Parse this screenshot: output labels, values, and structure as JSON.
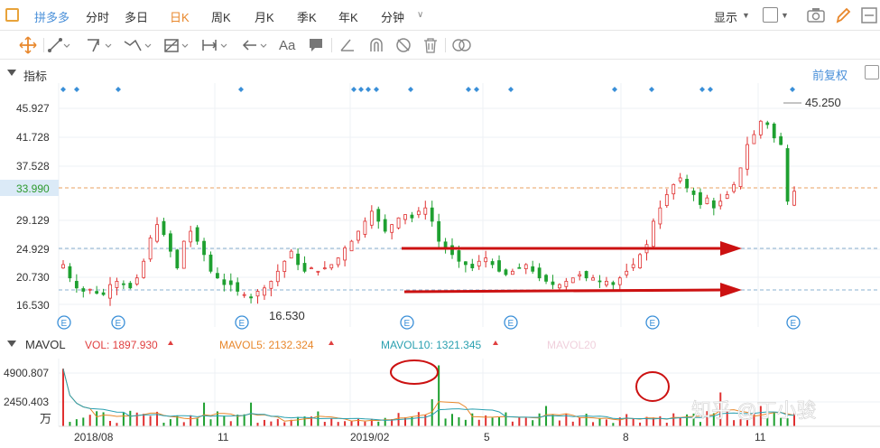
{
  "topbar": {
    "stock_name": "拼多多",
    "periods": [
      "分时",
      "多日",
      "日K",
      "周K",
      "月K",
      "季K",
      "年K",
      "分钟"
    ],
    "active_period": "日K",
    "display_label": "显示"
  },
  "indicator_panel": {
    "title": "指标",
    "adjust_label": "前复权"
  },
  "price_chart": {
    "y_ticks": [
      "45.927",
      "41.728",
      "37.528",
      "33.990",
      "29.129",
      "24.929",
      "20.730",
      "16.530"
    ],
    "current_price_label": "33.990",
    "high_annotation": "45.250",
    "low_annotation": "16.530",
    "event_marker": "E"
  },
  "volume_panel": {
    "title": "MAVOL",
    "legend": {
      "vol": "VOL: 1897.930",
      "mavol5": "MAVOL5: 2132.324",
      "mavol10": "MAVOL10: 1321.345",
      "mavol20": "MAVOL20"
    },
    "y_ticks": [
      "4900.807",
      "2450.403"
    ],
    "unit": "万"
  },
  "x_axis": {
    "labels": [
      "2018/08",
      "11",
      "2019/02",
      "5",
      "8",
      "11"
    ]
  },
  "watermark": "知乎 @丁小骏",
  "colors": {
    "up": "#e03030",
    "down": "#1ea030",
    "accent": "#e8872b",
    "link": "#4a90d9",
    "arrow": "#cc1111",
    "current_price": "#2e9b2e",
    "mavol5": "#e8872b",
    "mavol10": "#2aa0b0",
    "mavol20": "#e8a0c0"
  },
  "chart_data": {
    "type": "candlestick",
    "price_range": [
      16.53,
      45.927
    ],
    "series_close": [
      22.5,
      20.5,
      19.0,
      18.5,
      18.8,
      18.2,
      18.0,
      19.5,
      20.0,
      19.5,
      19.0,
      20.5,
      23.0,
      26.5,
      28.5,
      27.0,
      24.5,
      22.0,
      26.0,
      27.5,
      26.0,
      24.0,
      21.5,
      20.5,
      19.5,
      19.5,
      18.5,
      18.0,
      17.5,
      18.5,
      19.0,
      20.0,
      21.5,
      23.0,
      24.5,
      22.5,
      21.5,
      22.0,
      21.5,
      22.0,
      22.5,
      23.5,
      25.0,
      26.0,
      27.5,
      29.0,
      30.5,
      29.0,
      27.5,
      28.5,
      29.5,
      30.0,
      29.5,
      30.5,
      31.0,
      29.0,
      26.0,
      25.0,
      24.0,
      23.0,
      22.5,
      22.0,
      23.0,
      23.5,
      22.5,
      21.5,
      21.0,
      21.5,
      22.0,
      22.5,
      21.5,
      20.5,
      20.0,
      19.5,
      19.5,
      20.0,
      20.5,
      21.0,
      20.5,
      20.5,
      20.0,
      20.0,
      19.5,
      20.5,
      21.5,
      22.5,
      24.0,
      25.5,
      29.0,
      31.0,
      33.0,
      34.5,
      35.5,
      34.0,
      33.0,
      31.5,
      32.5,
      31.0,
      32.0,
      33.0,
      34.5,
      37.0,
      40.5,
      42.0,
      44.0,
      43.5,
      41.5,
      40.5,
      32.0,
      33.5
    ],
    "volume_scale_max": 4900.807
  }
}
